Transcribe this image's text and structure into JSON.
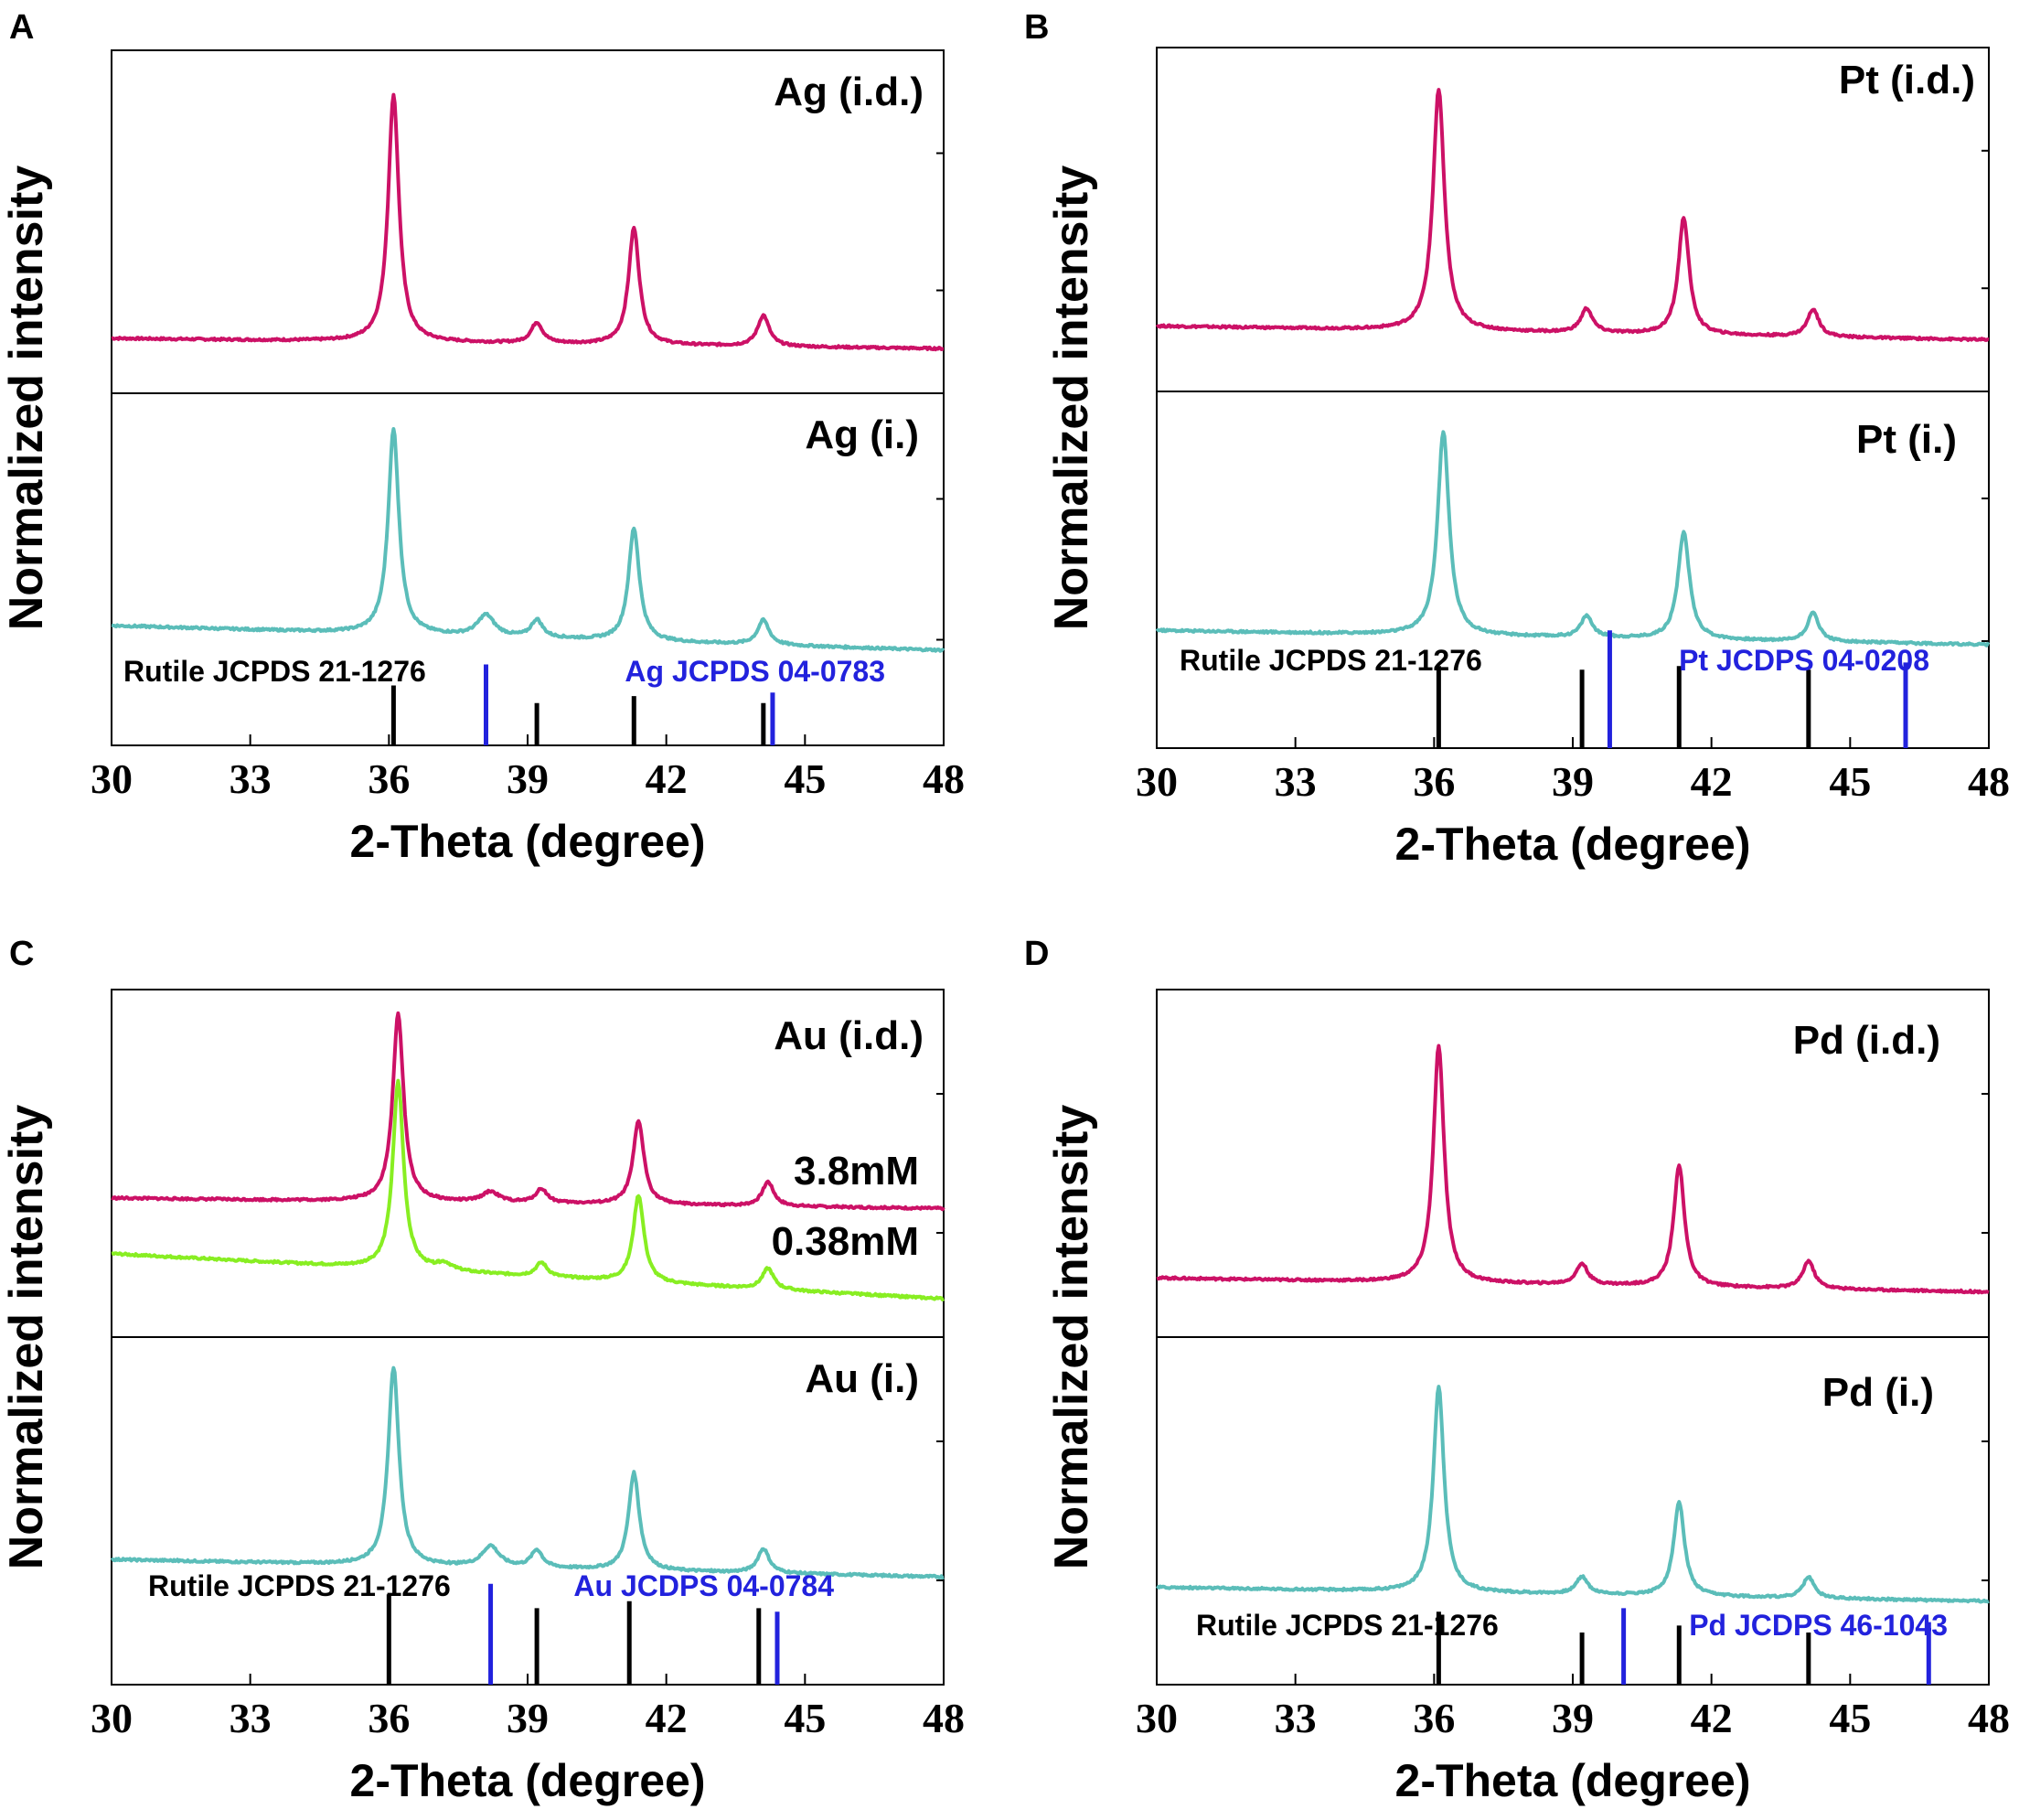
{
  "figure": {
    "colors": {
      "idd": "#cc1166",
      "i": "#5bbdb9",
      "green": "#88ee22",
      "rutile": "#000000",
      "metal": "#2222dd"
    }
  },
  "chart_data": [
    {
      "type": "line",
      "panel_label": "A",
      "xlabel": "2-Theta (degree)",
      "ylabel": "Normalized intensity",
      "xlim": [
        30,
        48
      ],
      "xticks": [
        "30",
        "33",
        "36",
        "39",
        "42",
        "45",
        "48"
      ],
      "grid": false,
      "top": {
        "label": "Ag (i.d.)",
        "series": [
          {
            "name": "Ag (i.d.)",
            "color": "#cc1166",
            "baseline_start": 0.16,
            "baseline_end": 0.13,
            "peaks": [
              [
                36.1,
                0.72,
                0.14
              ],
              [
                39.2,
                0.06,
                0.15
              ],
              [
                41.3,
                0.34,
                0.14
              ],
              [
                44.1,
                0.09,
                0.15
              ]
            ]
          }
        ]
      },
      "bottom": {
        "label": "Ag (i.)",
        "series": [
          {
            "name": "Ag (i.)",
            "color": "#5bbdb9",
            "baseline_start": 0.34,
            "baseline_end": 0.27,
            "peaks": [
              [
                36.1,
                0.58,
                0.14
              ],
              [
                38.1,
                0.06,
                0.22
              ],
              [
                39.2,
                0.05,
                0.15
              ],
              [
                41.3,
                0.32,
                0.14
              ],
              [
                44.1,
                0.07,
                0.15
              ]
            ]
          }
        ],
        "references": [
          {
            "name": "Rutile JCPDS 21-1276",
            "color": "#000000",
            "positions": [
              36.1,
              39.2,
              41.3,
              44.1
            ],
            "heights": [
              0.17,
              0.12,
              0.14,
              0.12
            ]
          },
          {
            "name": "Ag JCPDS 04-0783",
            "color": "#2222dd",
            "positions": [
              38.1,
              44.3
            ],
            "heights": [
              0.23,
              0.15
            ]
          }
        ]
      }
    },
    {
      "type": "line",
      "panel_label": "B",
      "xlabel": "2-Theta (degree)",
      "ylabel": "Normalized intensity",
      "xlim": [
        30,
        48
      ],
      "xticks": [
        "30",
        "33",
        "36",
        "39",
        "42",
        "45",
        "48"
      ],
      "grid": false,
      "top": {
        "label": "Pt (i.d.)",
        "series": [
          {
            "name": "Pt (i.d.)",
            "color": "#cc1166",
            "baseline_start": 0.19,
            "baseline_end": 0.15,
            "peaks": [
              [
                36.1,
                0.7,
                0.15
              ],
              [
                39.3,
                0.07,
                0.15
              ],
              [
                41.4,
                0.34,
                0.14
              ],
              [
                44.2,
                0.08,
                0.15
              ]
            ]
          }
        ]
      },
      "bottom": {
        "label": "Pt (i.)",
        "series": [
          {
            "name": "Pt (i.)",
            "color": "#5bbdb9",
            "baseline_start": 0.33,
            "baseline_end": 0.29,
            "peaks": [
              [
                36.2,
                0.57,
                0.15
              ],
              [
                39.3,
                0.06,
                0.15
              ],
              [
                41.4,
                0.3,
                0.15
              ],
              [
                44.2,
                0.08,
                0.15
              ]
            ]
          }
        ],
        "references": [
          {
            "name": "Rutile JCPDS 21-1276",
            "color": "#000000",
            "positions": [
              36.1,
              39.2,
              41.3,
              44.1
            ],
            "heights": [
              0.23,
              0.22,
              0.23,
              0.22
            ]
          },
          {
            "name": "Pt JCDPS 04-0208",
            "color": "#2222dd",
            "positions": [
              39.8,
              46.2
            ],
            "heights": [
              0.33,
              0.24
            ]
          }
        ]
      }
    },
    {
      "type": "line",
      "panel_label": "C",
      "xlabel": "2-Theta (degree)",
      "ylabel": "Normalized intensity",
      "xlim": [
        30,
        48
      ],
      "xticks": [
        "30",
        "33",
        "36",
        "39",
        "42",
        "45",
        "48"
      ],
      "grid": false,
      "top": {
        "label": "Au (i.d.)",
        "series": [
          {
            "name": "3.8mM",
            "color": "#cc1166",
            "baseline_start": 0.4,
            "baseline_end": 0.37,
            "peaks": [
              [
                36.2,
                0.54,
                0.14
              ],
              [
                38.2,
                0.03,
                0.22
              ],
              [
                39.3,
                0.04,
                0.15
              ],
              [
                41.4,
                0.24,
                0.14
              ],
              [
                44.2,
                0.07,
                0.15
              ]
            ]
          },
          {
            "name": "0.38mM",
            "color": "#88ee22",
            "baseline_start": 0.24,
            "baseline_end": 0.11,
            "peaks": [
              [
                36.2,
                0.54,
                0.14
              ],
              [
                37.2,
                0.02,
                0.2
              ],
              [
                39.3,
                0.04,
                0.15
              ],
              [
                41.4,
                0.25,
                0.14
              ],
              [
                44.2,
                0.06,
                0.15
              ]
            ]
          }
        ]
      },
      "bottom": {
        "label": "Au (i.)",
        "series": [
          {
            "name": "Au (i.)",
            "color": "#5bbdb9",
            "baseline_start": 0.36,
            "baseline_end": 0.31,
            "peaks": [
              [
                36.1,
                0.57,
                0.14
              ],
              [
                38.2,
                0.06,
                0.22
              ],
              [
                39.2,
                0.05,
                0.15
              ],
              [
                41.3,
                0.28,
                0.14
              ],
              [
                44.1,
                0.07,
                0.15
              ]
            ]
          }
        ],
        "references": [
          {
            "name": "Rutile JCPDS 21-1276",
            "color": "#000000",
            "positions": [
              36.0,
              39.2,
              41.2,
              44.0
            ],
            "heights": [
              0.26,
              0.22,
              0.24,
              0.22
            ]
          },
          {
            "name": "Au JCDPS 04-0784",
            "color": "#2222dd",
            "positions": [
              38.2,
              44.4
            ],
            "heights": [
              0.29,
              0.21
            ]
          }
        ]
      }
    },
    {
      "type": "line",
      "panel_label": "D",
      "xlabel": "2-Theta (degree)",
      "ylabel": "Normalized intensity",
      "xlim": [
        30,
        48
      ],
      "xticks": [
        "30",
        "33",
        "36",
        "39",
        "42",
        "45",
        "48"
      ],
      "grid": false,
      "top": {
        "label": "Pd (i.d.)",
        "series": [
          {
            "name": "Pd (i.d.)",
            "color": "#cc1166",
            "baseline_start": 0.17,
            "baseline_end": 0.13,
            "peaks": [
              [
                36.1,
                0.68,
                0.14
              ],
              [
                39.2,
                0.06,
                0.15
              ],
              [
                41.3,
                0.35,
                0.14
              ],
              [
                44.1,
                0.08,
                0.15
              ]
            ]
          }
        ]
      },
      "bottom": {
        "label": "Pd (i.)",
        "series": [
          {
            "name": "Pd (i.)",
            "color": "#5bbdb9",
            "baseline_start": 0.28,
            "baseline_end": 0.24,
            "peaks": [
              [
                36.1,
                0.59,
                0.14
              ],
              [
                39.2,
                0.05,
                0.15
              ],
              [
                41.3,
                0.27,
                0.14
              ],
              [
                44.1,
                0.06,
                0.15
              ]
            ]
          }
        ],
        "references": [
          {
            "name": "Rutile JCPDS 21-1276",
            "color": "#000000",
            "positions": [
              36.1,
              39.2,
              41.3,
              44.1
            ],
            "heights": [
              0.21,
              0.15,
              0.17,
              0.15
            ]
          },
          {
            "name": "Pd JCDPS 46-1043",
            "color": "#2222dd",
            "positions": [
              40.1,
              46.7
            ],
            "heights": [
              0.22,
              0.18
            ]
          }
        ]
      }
    }
  ]
}
